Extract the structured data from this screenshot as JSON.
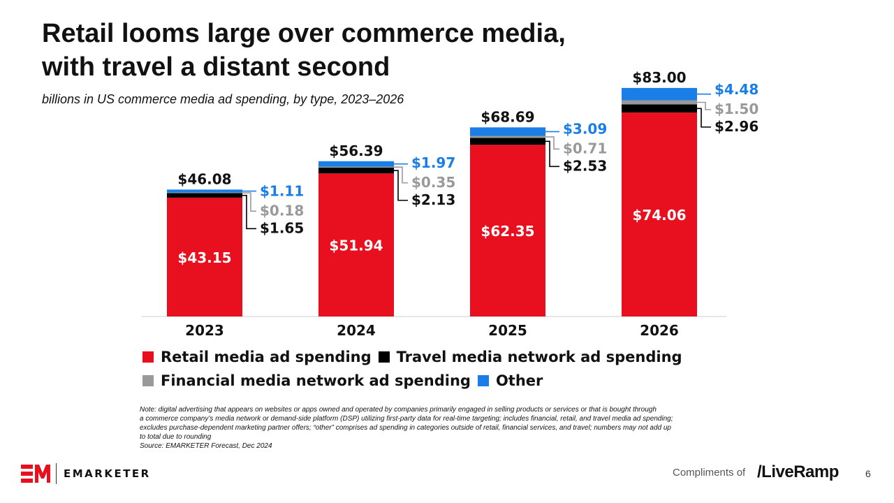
{
  "title_line1": "Retail looms large over commerce media,",
  "title_line2": "with travel a distant second",
  "subtitle": "billions in US commerce media ad spending, by type, 2023–2026",
  "colors": {
    "retail": "#e8101f",
    "travel": "#000000",
    "financial": "#999999",
    "other": "#1a7ee6"
  },
  "chart_data": {
    "type": "bar",
    "stacked": true,
    "title": "Retail looms large over commerce media, with travel a distant second",
    "subtitle": "billions in US commerce media ad spending, by type, 2023–2026",
    "categories": [
      "2023",
      "2024",
      "2025",
      "2026"
    ],
    "totals": [
      46.08,
      56.39,
      68.69,
      83.0
    ],
    "total_labels": [
      "$46.08",
      "$56.39",
      "$68.69",
      "$83.00"
    ],
    "series": [
      {
        "name": "Retail media ad spending",
        "key": "retail",
        "values": [
          43.15,
          51.94,
          62.35,
          74.06
        ],
        "labels": [
          "$43.15",
          "$51.94",
          "$62.35",
          "$74.06"
        ]
      },
      {
        "name": "Travel media network ad spending",
        "key": "travel",
        "values": [
          1.65,
          2.13,
          2.53,
          2.96
        ],
        "labels": [
          "$1.65",
          "$2.13",
          "$2.53",
          "$2.96"
        ]
      },
      {
        "name": "Financial media network ad spending",
        "key": "financial",
        "values": [
          0.18,
          0.35,
          0.71,
          1.5
        ],
        "labels": [
          "$0.18",
          "$0.35",
          "$0.71",
          "$1.50"
        ]
      },
      {
        "name": "Other",
        "key": "other",
        "values": [
          1.11,
          1.97,
          3.09,
          4.48
        ],
        "labels": [
          "$1.11",
          "$1.97",
          "$3.09",
          "$4.48"
        ]
      }
    ],
    "ylim": [
      0,
      85
    ],
    "xlabel": "",
    "ylabel": "",
    "grid": false,
    "legend_position": "bottom"
  },
  "note_lines": [
    "Note: digital advertising that appears on websites or apps owned and operated by companies primarily engaged in selling products or services or that is bought through",
    "a commerce company’s media network or demand-side platform (DSP) utilizing first-party data for real-time targeting; includes financial, retail, and travel media ad spending;",
    "excludes purchase-dependent marketing partner offers; “other” comprises ad spending in categories outside of retail, financial services, and travel; numbers may not add up",
    "to total due to rounding",
    "Source: EMARKETER Forecast, Dec 2024"
  ],
  "footer": {
    "brand": "EMARKETER",
    "compliments": "Compliments of",
    "partner": "/LiveRamp",
    "page_number": "6"
  }
}
